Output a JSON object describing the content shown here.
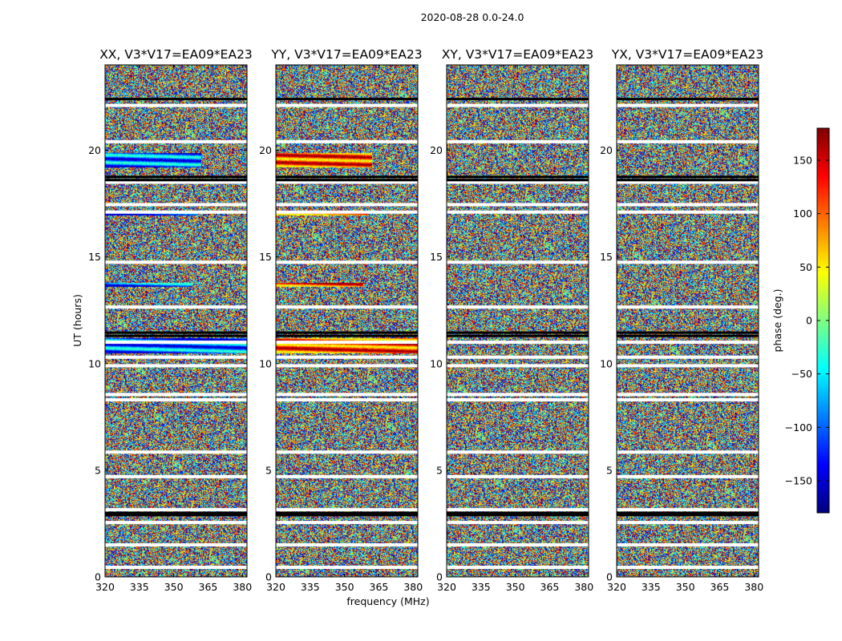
{
  "chart_data": {
    "type": "heatmap",
    "suptitle": "2020-08-28 0.0-24.0",
    "xlabel": "frequency (MHz)",
    "ylabel": "UT (hours)",
    "xlim": [
      320,
      382
    ],
    "ylim": [
      0,
      24
    ],
    "xticks": [
      320,
      335,
      350,
      365,
      380
    ],
    "yticks": [
      0,
      5,
      10,
      15,
      20
    ],
    "colorbar": {
      "label": "phase (deg.)",
      "range": [
        -180,
        180
      ],
      "ticks": [
        150,
        100,
        50,
        0,
        -50,
        -100,
        -150
      ],
      "tick_labels": [
        "150",
        "100",
        "50",
        "0",
        "−50",
        "−100",
        "−150"
      ],
      "colormap": "jet",
      "stops": [
        "#00007f",
        "#0000ff",
        "#007fff",
        "#00ffff",
        "#7fff7f",
        "#ffff00",
        "#ff7f00",
        "#ff0000",
        "#7f0000"
      ]
    },
    "flag_color": "#ffffff",
    "panels": [
      {
        "title": "XX, V3*V17=EA09*EA23"
      },
      {
        "title": "YY, V3*V17=EA09*EA23"
      },
      {
        "title": "XY, V3*V17=EA09*EA23"
      },
      {
        "title": "YX, V3*V17=EA09*EA23"
      }
    ],
    "flagged_hours_white": [
      0.45,
      1.5,
      2.55,
      3.15,
      4.7,
      5.85,
      8.3,
      8.55,
      9.9,
      10.3,
      11.0,
      12.65,
      14.75,
      17.1,
      17.45,
      18.5,
      20.4,
      22.1
    ],
    "flagged_hours_black": [
      2.9,
      3.0,
      11.3,
      11.45,
      18.6,
      18.75,
      22.4
    ],
    "coherent_bands_parallel_hands": [
      {
        "ut_start": 19.2,
        "ut_end": 19.9,
        "freq_end": 362
      },
      {
        "ut_start": 16.95,
        "ut_end": 17.2,
        "freq_end": 360
      },
      {
        "ut_start": 13.6,
        "ut_end": 13.8,
        "freq_end": 358
      },
      {
        "ut_start": 10.5,
        "ut_end": 11.2,
        "freq_end": 382
      }
    ]
  }
}
